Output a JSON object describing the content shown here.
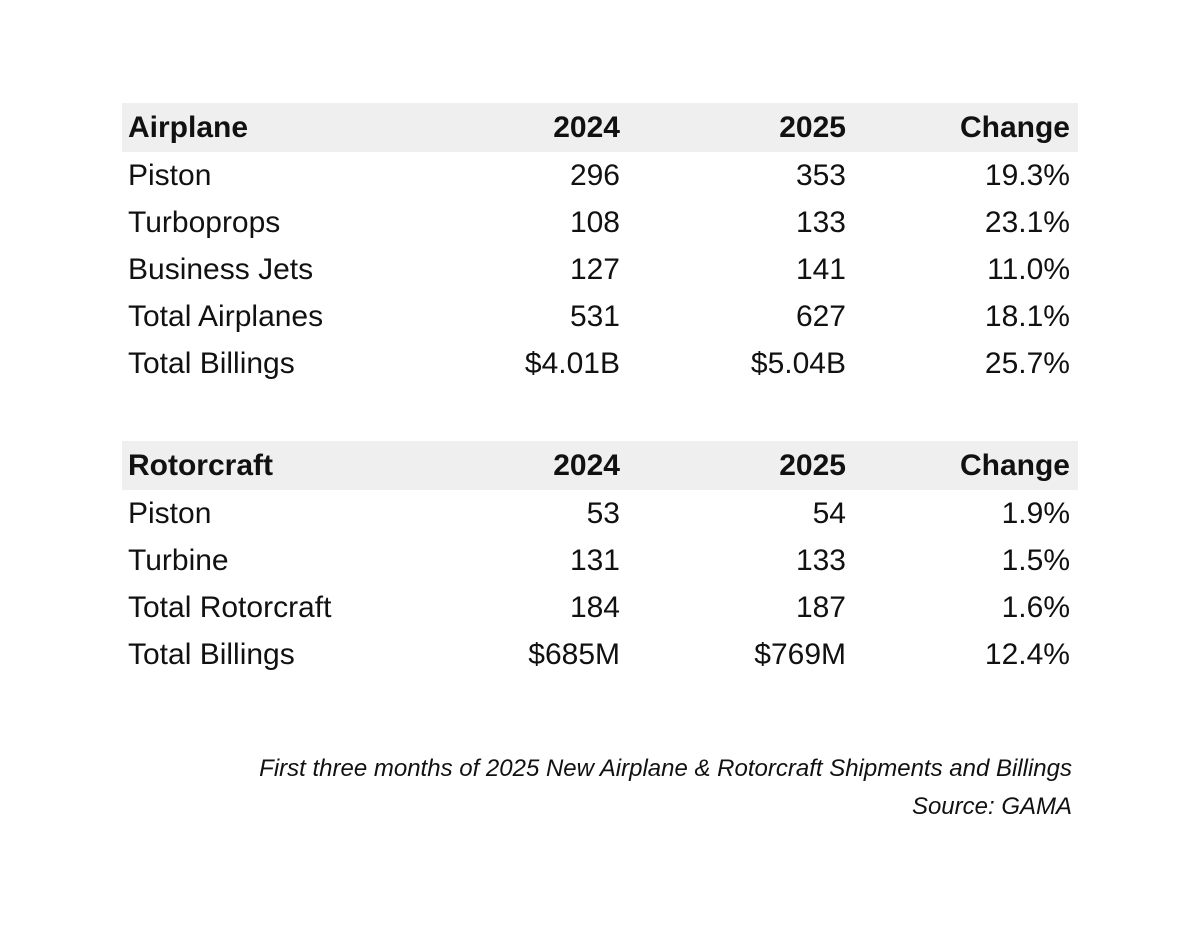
{
  "chart_data": [
    {
      "type": "table",
      "columns": [
        "Airplane",
        "2024",
        "2025",
        "Change"
      ],
      "rows": [
        [
          "Piston",
          "296",
          "353",
          "19.3%"
        ],
        [
          "Turboprops",
          "108",
          "133",
          "23.1%"
        ],
        [
          "Business Jets",
          "127",
          "141",
          "11.0%"
        ],
        [
          "Total Airplanes",
          "531",
          "627",
          "18.1%"
        ],
        [
          "Total Billings",
          "$4.01B",
          "$5.04B",
          "25.7%"
        ]
      ]
    },
    {
      "type": "table",
      "columns": [
        "Rotorcraft",
        "2024",
        "2025",
        "Change"
      ],
      "rows": [
        [
          "Piston",
          "53",
          "54",
          "1.9%"
        ],
        [
          "Turbine",
          "131",
          "133",
          "1.5%"
        ],
        [
          "Total Rotorcraft",
          "184",
          "187",
          "1.6%"
        ],
        [
          "Total Billings",
          "$685M",
          "$769M",
          "12.4%"
        ]
      ]
    }
  ],
  "caption": {
    "line1": "First three months of 2025 New Airplane & Rotorcraft Shipments and Billings",
    "line2": "Source: GAMA"
  },
  "colors": {
    "header_background": "#efefef",
    "text": "#111111"
  }
}
